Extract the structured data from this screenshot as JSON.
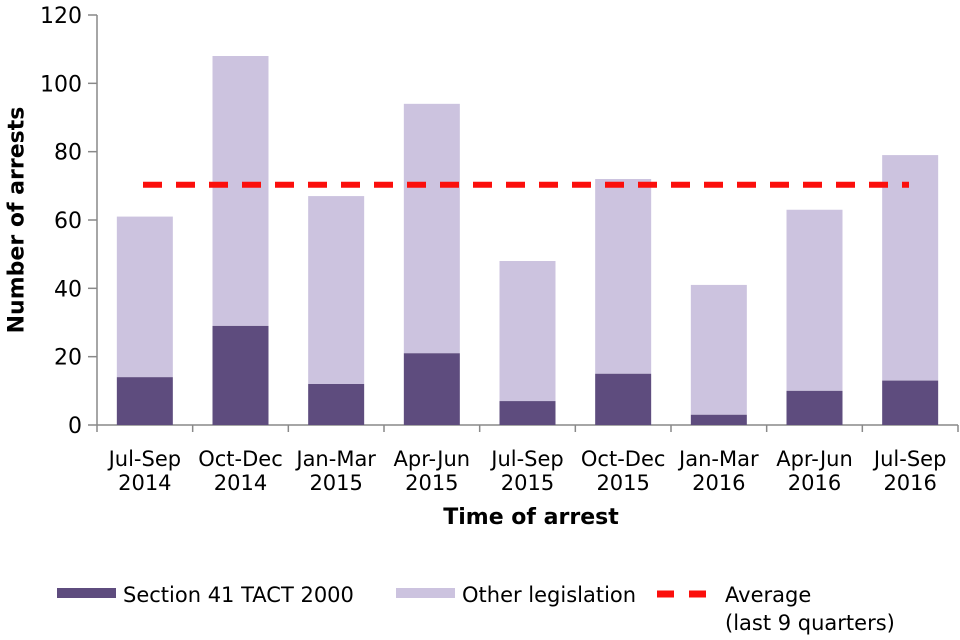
{
  "chart_data": {
    "type": "bar",
    "stacked": true,
    "title": "",
    "xlabel": "Time of arrest",
    "ylabel": "Number of arrests",
    "ylim": [
      0,
      120
    ],
    "yticks": [
      0,
      20,
      40,
      60,
      80,
      100,
      120
    ],
    "grid": false,
    "legend_position": "bottom",
    "categories": [
      [
        "Jul-Sep",
        "2014"
      ],
      [
        "Oct-Dec",
        "2014"
      ],
      [
        "Jan-Mar",
        "2015"
      ],
      [
        "Apr-Jun",
        "2015"
      ],
      [
        "Jul-Sep",
        "2015"
      ],
      [
        "Oct-Dec",
        "2015"
      ],
      [
        "Jan-Mar",
        "2016"
      ],
      [
        "Apr-Jun",
        "2016"
      ],
      [
        "Jul-Sep",
        "2016"
      ]
    ],
    "series": [
      {
        "name": "Section 41 TACT 2000",
        "color": "#5e4c7e",
        "values": [
          14,
          29,
          12,
          21,
          7,
          15,
          3,
          10,
          13
        ]
      },
      {
        "name": "Other legislation",
        "color": "#ccc3df",
        "values": [
          47,
          79,
          55,
          73,
          41,
          57,
          38,
          53,
          66
        ]
      }
    ],
    "stacked_totals": [
      61,
      108,
      67,
      94,
      48,
      72,
      41,
      63,
      79
    ],
    "average_line": {
      "label_line1": "Average",
      "label_line2": "(last 9 quarters)",
      "value": 70.3,
      "color": "#fb0f0c",
      "style": "dashed"
    },
    "axis_color": "#898989"
  }
}
